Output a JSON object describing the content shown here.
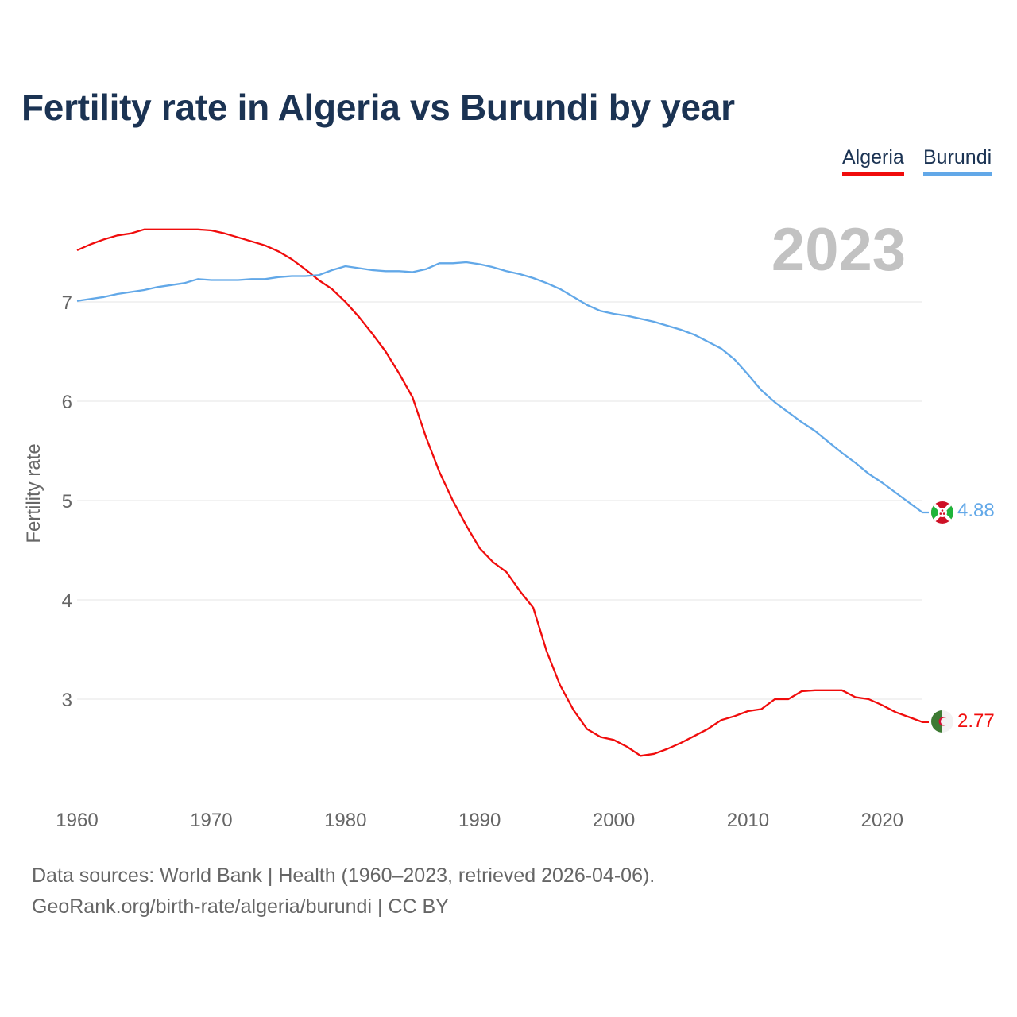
{
  "chart_data": {
    "type": "line",
    "title": "Fertility rate in Algeria vs Burundi by year",
    "xlabel": "",
    "ylabel": "Fertility rate",
    "xlim": [
      1960,
      2023
    ],
    "ylim": [
      2.0,
      7.8
    ],
    "xticks": [
      1960,
      1970,
      1980,
      1990,
      2000,
      2010,
      2020
    ],
    "yticks": [
      3,
      4,
      5,
      6,
      7
    ],
    "grid": "horizontal",
    "legend_position": "top-right",
    "year_watermark": "2023",
    "series": [
      {
        "name": "Algeria",
        "color": "#f00c0c",
        "end_label": "2.77",
        "flag_icon": "algeria-flag-icon",
        "x": [
          1960,
          1961,
          1962,
          1963,
          1964,
          1965,
          1966,
          1967,
          1968,
          1969,
          1970,
          1971,
          1972,
          1973,
          1974,
          1975,
          1976,
          1977,
          1978,
          1979,
          1980,
          1981,
          1982,
          1983,
          1984,
          1985,
          1986,
          1987,
          1988,
          1989,
          1990,
          1991,
          1992,
          1993,
          1994,
          1995,
          1996,
          1997,
          1998,
          1999,
          2000,
          2001,
          2002,
          2003,
          2004,
          2005,
          2006,
          2007,
          2008,
          2009,
          2010,
          2011,
          2012,
          2013,
          2014,
          2015,
          2016,
          2017,
          2018,
          2019,
          2020,
          2021,
          2022,
          2023
        ],
        "values": [
          7.52,
          7.58,
          7.63,
          7.67,
          7.69,
          7.73,
          7.73,
          7.73,
          7.73,
          7.73,
          7.72,
          7.69,
          7.65,
          7.61,
          7.57,
          7.51,
          7.43,
          7.33,
          7.22,
          7.13,
          7.0,
          6.85,
          6.68,
          6.5,
          6.28,
          6.04,
          5.64,
          5.29,
          5.0,
          4.75,
          4.52,
          4.38,
          4.28,
          4.09,
          3.92,
          3.48,
          3.14,
          2.89,
          2.7,
          2.62,
          2.59,
          2.52,
          2.43,
          2.45,
          2.5,
          2.56,
          2.63,
          2.7,
          2.79,
          2.83,
          2.88,
          2.9,
          3.0,
          3.0,
          3.08,
          3.09,
          3.09,
          3.09,
          3.02,
          3.0,
          2.94,
          2.87,
          2.82,
          2.77
        ]
      },
      {
        "name": "Burundi",
        "color": "#62a8e8",
        "end_label": "4.88",
        "flag_icon": "burundi-flag-icon",
        "x": [
          1960,
          1961,
          1962,
          1963,
          1964,
          1965,
          1966,
          1967,
          1968,
          1969,
          1970,
          1971,
          1972,
          1973,
          1974,
          1975,
          1976,
          1977,
          1978,
          1979,
          1980,
          1981,
          1982,
          1983,
          1984,
          1985,
          1986,
          1987,
          1988,
          1989,
          1990,
          1991,
          1992,
          1993,
          1994,
          1995,
          1996,
          1997,
          1998,
          1999,
          2000,
          2001,
          2002,
          2003,
          2004,
          2005,
          2006,
          2007,
          2008,
          2009,
          2010,
          2011,
          2012,
          2013,
          2014,
          2015,
          2016,
          2017,
          2018,
          2019,
          2020,
          2021,
          2022,
          2023
        ],
        "values": [
          7.01,
          7.03,
          7.05,
          7.08,
          7.1,
          7.12,
          7.15,
          7.17,
          7.19,
          7.23,
          7.22,
          7.22,
          7.22,
          7.23,
          7.23,
          7.25,
          7.26,
          7.26,
          7.27,
          7.32,
          7.36,
          7.34,
          7.32,
          7.31,
          7.31,
          7.3,
          7.33,
          7.39,
          7.39,
          7.4,
          7.38,
          7.35,
          7.31,
          7.28,
          7.24,
          7.19,
          7.13,
          7.05,
          6.97,
          6.91,
          6.88,
          6.86,
          6.83,
          6.8,
          6.76,
          6.72,
          6.67,
          6.6,
          6.53,
          6.42,
          6.27,
          6.11,
          5.99,
          5.89,
          5.79,
          5.7,
          5.59,
          5.48,
          5.38,
          5.27,
          5.18,
          5.08,
          4.98,
          4.88
        ]
      }
    ]
  },
  "footer": {
    "source": "Data sources: World Bank | Health (1960–2023, retrieved 2026-04-06).",
    "credit": "GeoRank.org/birth-rate/algeria/burundi | CC BY"
  }
}
